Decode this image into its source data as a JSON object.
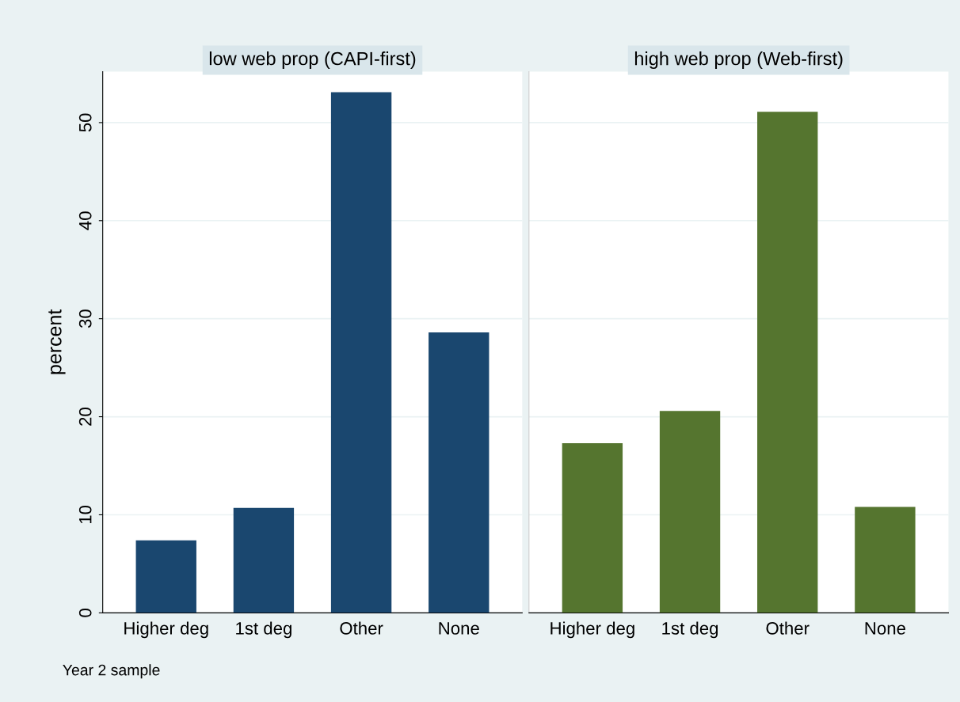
{
  "chart_data": [
    {
      "type": "bar",
      "title": "low web prop (CAPI-first)",
      "ylabel": "percent",
      "categories": [
        "Higher deg",
        "1st deg",
        "Other",
        "None"
      ],
      "values": [
        7.4,
        10.7,
        53.1,
        28.6
      ],
      "color": "#1a476f",
      "ylim": [
        0,
        55.2
      ],
      "yticks": [
        0,
        10,
        20,
        30,
        40,
        50
      ],
      "grid": "y",
      "annotations": [
        "Year 2 sample"
      ]
    },
    {
      "type": "bar",
      "title": "high web prop (Web-first)",
      "categories": [
        "Higher deg",
        "1st deg",
        "Other",
        "None"
      ],
      "values": [
        17.3,
        20.6,
        51.1,
        10.8
      ],
      "color": "#55752f",
      "ylim": [
        0,
        55.2
      ],
      "yticks": [
        0,
        10,
        20,
        30,
        40,
        50
      ],
      "grid": "y",
      "tick_labels": "x"
    }
  ]
}
